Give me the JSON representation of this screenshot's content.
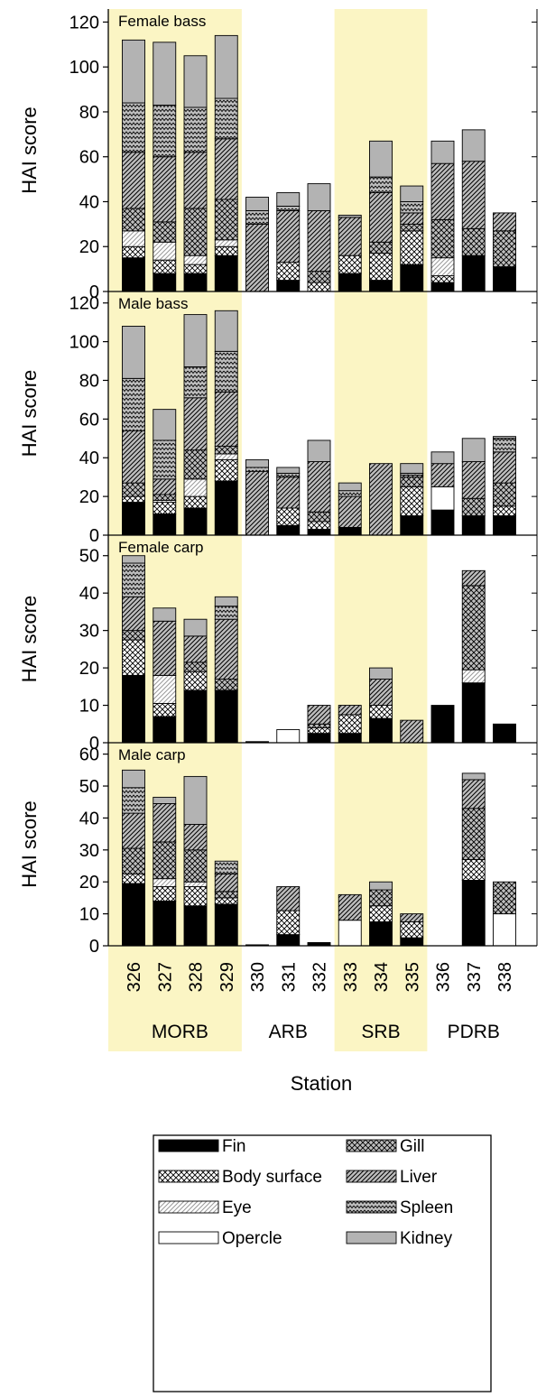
{
  "colors": {
    "band": "#fbf5c4",
    "fin": "#000000",
    "kidney": "#b3b3b3",
    "opercle": "#ffffff",
    "hatch_bg": "#bdbdbd"
  },
  "ylabel": "HAI score",
  "xlabel": "Station",
  "stations": [
    "326",
    "327",
    "328",
    "329",
    "330",
    "331",
    "332",
    "333",
    "334",
    "335",
    "336",
    "337",
    "338"
  ],
  "basins": [
    {
      "name": "MORB",
      "stations": [
        "326",
        "327",
        "328",
        "329"
      ],
      "shaded": true
    },
    {
      "name": "ARB",
      "stations": [
        "330",
        "331",
        "332"
      ],
      "shaded": false
    },
    {
      "name": "SRB",
      "stations": [
        "333",
        "334",
        "335"
      ],
      "shaded": true
    },
    {
      "name": "PDRB",
      "stations": [
        "336",
        "337",
        "338"
      ],
      "shaded": false
    }
  ],
  "legend": [
    {
      "key": "fin",
      "label": "Fin",
      "pattern": "fin"
    },
    {
      "key": "gill",
      "label": "Gill",
      "pattern": "gill"
    },
    {
      "key": "body",
      "label": "Body surface",
      "pattern": "body"
    },
    {
      "key": "liver",
      "label": "Liver",
      "pattern": "liver"
    },
    {
      "key": "eye",
      "label": "Eye",
      "pattern": "eye"
    },
    {
      "key": "spleen",
      "label": "Spleen",
      "pattern": "spleen"
    },
    {
      "key": "opercle",
      "label": "Opercle",
      "pattern": "opercle"
    },
    {
      "key": "kidney",
      "label": "Kidney",
      "pattern": "kidney"
    }
  ],
  "chart_data": [
    {
      "type": "bar",
      "stacked": true,
      "title": "Female bass",
      "ylabel": "HAI score",
      "ylim": [
        0,
        125
      ],
      "yticks": [
        0,
        20,
        40,
        60,
        80,
        100,
        120
      ],
      "categories": [
        "326",
        "327",
        "328",
        "329",
        "330",
        "331",
        "332",
        "333",
        "334",
        "335",
        "336",
        "337",
        "338"
      ],
      "series": [
        {
          "name": "Fin",
          "values": [
            15,
            8,
            8,
            16,
            0,
            5,
            0,
            8,
            5,
            12,
            4,
            16,
            11
          ]
        },
        {
          "name": "Body surface",
          "values": [
            5,
            6,
            4,
            4,
            0,
            8,
            4,
            8,
            12,
            15,
            3,
            0,
            0
          ]
        },
        {
          "name": "Eye",
          "values": [
            7,
            8,
            4,
            3,
            0,
            0,
            0,
            0,
            0,
            0,
            8,
            0,
            0
          ]
        },
        {
          "name": "Opercle",
          "values": [
            0,
            0,
            0,
            0,
            0,
            0,
            0,
            0,
            0,
            0,
            0,
            0,
            0
          ]
        },
        {
          "name": "Gill",
          "values": [
            10,
            9,
            21,
            18,
            0,
            0,
            5,
            0,
            5,
            3,
            17,
            12,
            16
          ]
        },
        {
          "name": "Liver",
          "values": [
            25,
            29,
            25,
            27,
            30,
            23,
            27,
            17,
            22,
            5,
            25,
            30,
            8
          ]
        },
        {
          "name": "Spleen",
          "values": [
            22,
            23,
            20,
            18,
            6,
            2,
            0,
            0,
            7,
            5,
            0,
            0,
            0
          ]
        },
        {
          "name": "Kidney",
          "values": [
            28,
            28,
            23,
            28,
            6,
            6,
            12,
            1,
            16,
            7,
            10,
            14,
            0
          ]
        }
      ]
    },
    {
      "type": "bar",
      "stacked": true,
      "title": "Male bass",
      "ylabel": "HAI score",
      "ylim": [
        0,
        125
      ],
      "yticks": [
        0,
        20,
        40,
        60,
        80,
        100,
        120
      ],
      "categories": [
        "326",
        "327",
        "328",
        "329",
        "330",
        "331",
        "332",
        "333",
        "334",
        "335",
        "336",
        "337",
        "338"
      ],
      "series": [
        {
          "name": "Fin",
          "values": [
            17,
            11,
            14,
            28,
            0,
            5,
            3,
            4,
            0,
            10,
            13,
            10,
            10
          ]
        },
        {
          "name": "Body surface",
          "values": [
            3,
            6,
            6,
            11,
            0,
            9,
            4,
            0,
            0,
            15,
            0,
            0,
            5
          ]
        },
        {
          "name": "Eye",
          "values": [
            0,
            1,
            9,
            3,
            0,
            0,
            0,
            0,
            0,
            0,
            0,
            0,
            0
          ]
        },
        {
          "name": "Opercle",
          "values": [
            0,
            0,
            0,
            0,
            0,
            0,
            0,
            0,
            0,
            0,
            12,
            0,
            0
          ]
        },
        {
          "name": "Gill",
          "values": [
            7,
            3,
            15,
            4,
            0,
            0,
            5,
            0,
            0,
            5,
            0,
            9,
            12
          ]
        },
        {
          "name": "Liver",
          "values": [
            27,
            8,
            27,
            28,
            33,
            16,
            26,
            16,
            37,
            1,
            12,
            19,
            16
          ]
        },
        {
          "name": "Spleen",
          "values": [
            27,
            20,
            16,
            21,
            2,
            2,
            0,
            3,
            0,
            1,
            0,
            0,
            7
          ]
        },
        {
          "name": "Kidney",
          "values": [
            27,
            16,
            27,
            21,
            4,
            3,
            11,
            4,
            0,
            5,
            6,
            12,
            1
          ]
        }
      ]
    },
    {
      "type": "bar",
      "stacked": true,
      "title": "Female carp",
      "ylabel": "HAI score",
      "ylim": [
        0,
        55
      ],
      "yticks": [
        0,
        10,
        20,
        30,
        40,
        50
      ],
      "categories": [
        "326",
        "327",
        "328",
        "329",
        "330",
        "331",
        "332",
        "333",
        "334",
        "335",
        "336",
        "337",
        "338"
      ],
      "series": [
        {
          "name": "Fin",
          "values": [
            18,
            7,
            14,
            14,
            0.3,
            0,
            2.5,
            2.5,
            6.5,
            0,
            10,
            16,
            5
          ]
        },
        {
          "name": "Body surface",
          "values": [
            9.5,
            3.5,
            5,
            0,
            0,
            0,
            1.5,
            5,
            3.5,
            0,
            0,
            0,
            0
          ]
        },
        {
          "name": "Eye",
          "values": [
            0,
            7.5,
            0,
            0,
            0,
            0,
            0,
            0,
            0,
            0,
            0,
            3.5,
            0
          ]
        },
        {
          "name": "Opercle",
          "values": [
            0,
            0,
            0,
            0,
            0,
            3.5,
            0,
            0,
            0,
            0,
            0,
            0,
            0
          ]
        },
        {
          "name": "Gill",
          "values": [
            2.5,
            0,
            2.5,
            3,
            0,
            0,
            1,
            0,
            0,
            0,
            0,
            22.5,
            0
          ]
        },
        {
          "name": "Liver",
          "values": [
            9,
            14.5,
            7,
            16,
            0,
            0,
            5,
            2.5,
            7,
            6,
            0,
            4,
            0
          ]
        },
        {
          "name": "Spleen",
          "values": [
            9,
            0,
            0,
            3.5,
            0,
            0,
            0,
            0,
            0,
            0,
            0,
            0,
            0
          ]
        },
        {
          "name": "Kidney",
          "values": [
            2,
            3.5,
            4.5,
            2.5,
            0,
            0,
            0,
            0,
            3,
            0,
            0,
            0,
            0
          ]
        }
      ]
    },
    {
      "type": "bar",
      "stacked": true,
      "title": "Male carp",
      "ylabel": "HAI score",
      "ylim": [
        0,
        63
      ],
      "yticks": [
        0,
        10,
        20,
        30,
        40,
        50,
        60
      ],
      "categories": [
        "326",
        "327",
        "328",
        "329",
        "330",
        "331",
        "332",
        "333",
        "334",
        "335",
        "336",
        "337",
        "338"
      ],
      "series": [
        {
          "name": "Fin",
          "values": [
            19.5,
            14,
            12.5,
            13,
            0.3,
            3.5,
            1,
            0,
            7.5,
            2.5,
            0,
            20.5,
            0
          ]
        },
        {
          "name": "Body surface",
          "values": [
            3,
            4.5,
            6,
            2,
            0,
            7.5,
            0,
            0,
            5,
            5,
            0,
            6.5,
            0
          ]
        },
        {
          "name": "Eye",
          "values": [
            0,
            2.5,
            1.5,
            0,
            0,
            0,
            0,
            0,
            0,
            0,
            0,
            0,
            0
          ]
        },
        {
          "name": "Opercle",
          "values": [
            0,
            0,
            0,
            0,
            0,
            0,
            0,
            8,
            0,
            0,
            0,
            0,
            10
          ]
        },
        {
          "name": "Gill",
          "values": [
            8,
            11.5,
            10,
            2,
            0,
            0,
            0,
            0,
            5,
            0,
            0,
            16,
            10
          ]
        },
        {
          "name": "Liver",
          "values": [
            11,
            12,
            8,
            5.5,
            0,
            7.5,
            0,
            8,
            0,
            2.5,
            0,
            9,
            0
          ]
        },
        {
          "name": "Spleen",
          "values": [
            8,
            0,
            0,
            4,
            0,
            0,
            0,
            0,
            0,
            0,
            0,
            0,
            0
          ]
        },
        {
          "name": "Kidney",
          "values": [
            5.5,
            2,
            15,
            0,
            0,
            0,
            0,
            0,
            2.5,
            0,
            0,
            2,
            0
          ]
        }
      ]
    }
  ]
}
